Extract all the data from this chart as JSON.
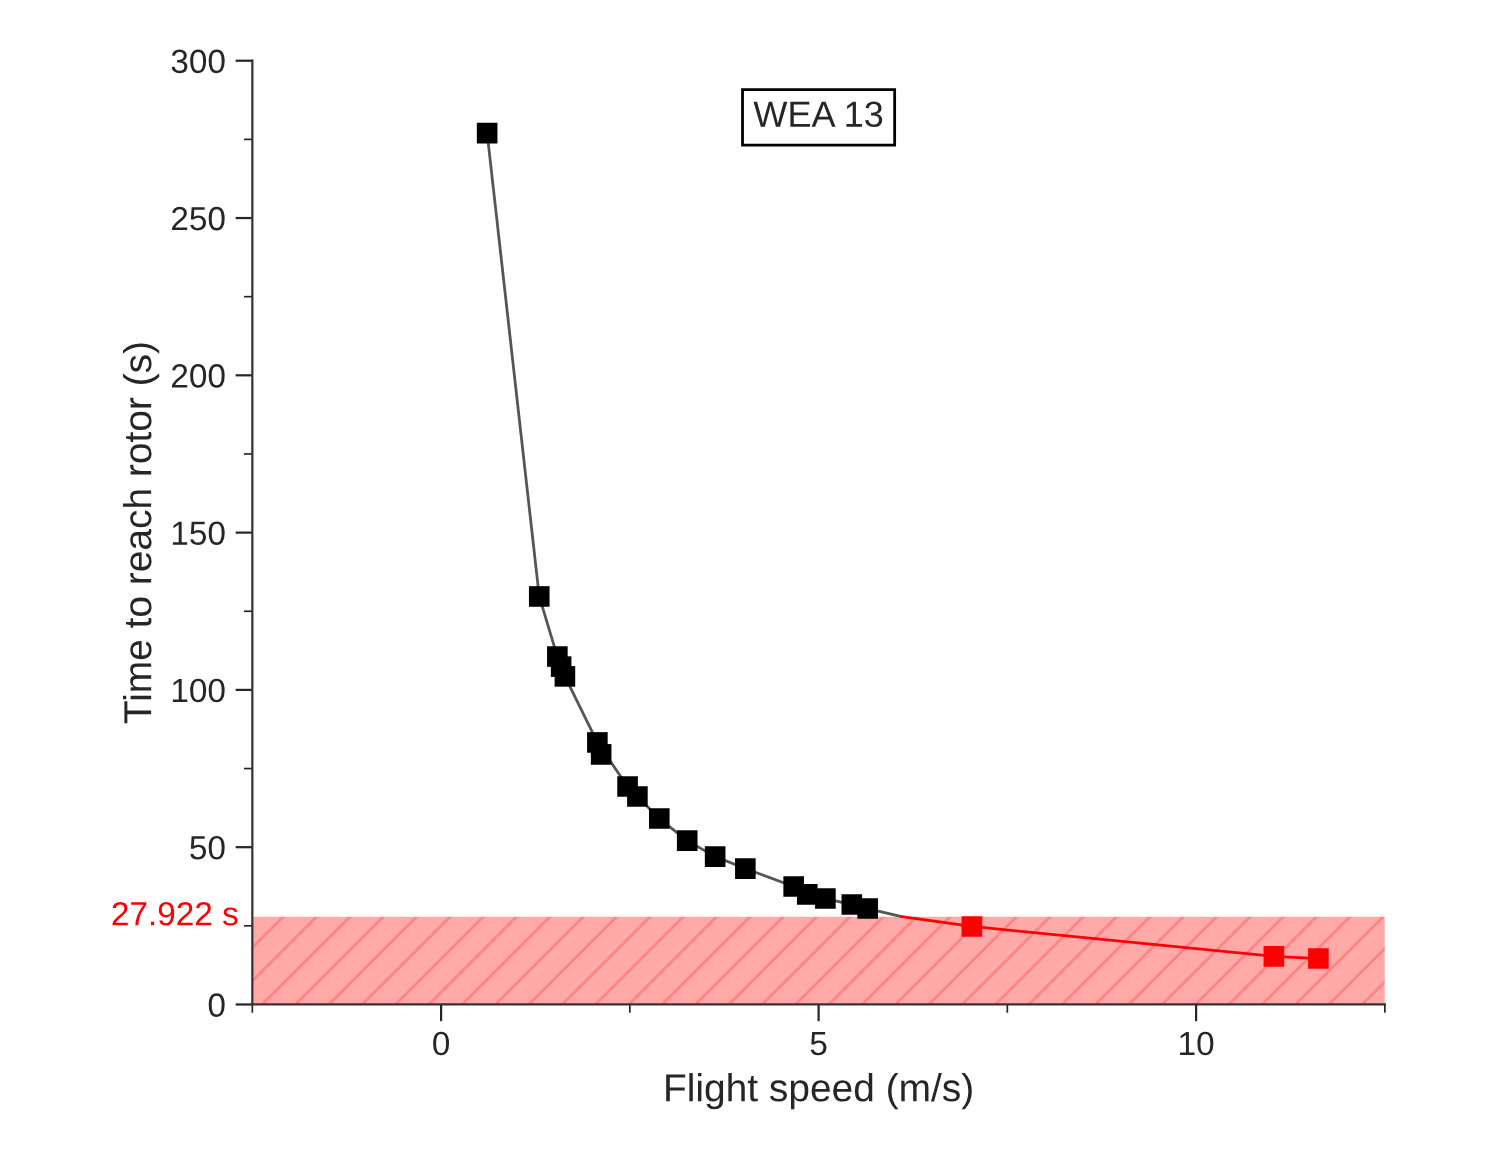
{
  "chart_data": {
    "type": "scatter",
    "title": "WEA 13",
    "xlabel": "Flight speed (m/s)",
    "ylabel": "Time to reach rotor (s)",
    "xlim": [
      -2.5,
      12.5
    ],
    "xticks": [
      0,
      5,
      10
    ],
    "ylim": [
      0,
      300
    ],
    "yticks": [
      0,
      50,
      100,
      150,
      200,
      250,
      300
    ],
    "grid": false,
    "series": [
      {
        "marker": "square",
        "color": "#000000",
        "x": [
          0.61,
          1.3,
          1.54,
          1.59,
          1.64,
          2.07,
          2.12,
          2.47,
          2.6,
          2.89,
          3.26,
          3.63,
          4.03,
          4.67,
          4.85,
          5.09,
          5.44,
          5.65
        ],
        "values": [
          277,
          129.7,
          110.6,
          107.4,
          104.3,
          83.3,
          79.5,
          69.3,
          66.1,
          59.1,
          52.1,
          47.0,
          43.2,
          37.5,
          35.0,
          33.7,
          31.8,
          30.5
        ]
      },
      {
        "marker": "square",
        "color": "#ff0000",
        "x": [
          7.03,
          11.03,
          11.62
        ],
        "values": [
          24.8,
          15.3,
          14.6
        ]
      },
      {
        "type": "line",
        "marker": "none",
        "color": "#555555",
        "x": [
          0.61,
          1.3,
          1.54,
          1.64,
          2.07,
          2.47,
          2.89,
          3.26,
          3.63,
          4.03,
          4.67,
          5.09,
          5.65,
          6.1
        ],
        "values": [
          277,
          129.7,
          110.6,
          104.3,
          83.3,
          69.3,
          59.1,
          52.1,
          47.0,
          43.2,
          37.5,
          33.7,
          30.5,
          27.9
        ]
      },
      {
        "type": "line",
        "marker": "none",
        "color": "#ff0000",
        "x": [
          6.1,
          7.03,
          11.03,
          11.62
        ],
        "values": [
          27.9,
          24.8,
          15.3,
          14.6
        ]
      }
    ],
    "bands": [
      {
        "axis": "y",
        "from": 0,
        "to": 27.922,
        "label": "27.922 s",
        "color": "#ff9a9a"
      }
    ]
  }
}
